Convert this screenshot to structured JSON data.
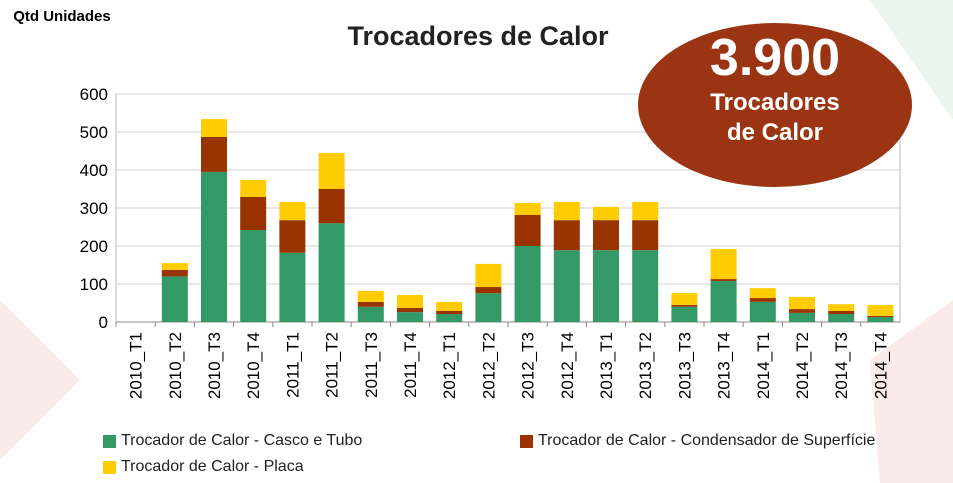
{
  "chart_data": {
    "type": "stacked_bar",
    "title": "Trocadores de Calor",
    "y_label": "Qtd Unidades",
    "categories": [
      "2010_T1",
      "2010_T2",
      "2010_T3",
      "2010_T4",
      "2011_T1",
      "2011_T2",
      "2011_T3",
      "2011_T4",
      "2012_T1",
      "2012_T2",
      "2012_T3",
      "2012_T4",
      "2013_T1",
      "2013_T2",
      "2013_T3",
      "2013_T4",
      "2014_T1",
      "2014_T2",
      "2014_T3",
      "2014_T4"
    ],
    "series": [
      {
        "name": "Trocador de Calor - Casco e Tubo",
        "color": "#339966",
        "values": [
          0,
          120,
          395,
          242,
          182,
          260,
          40,
          26,
          21,
          76,
          200,
          189,
          189,
          189,
          40,
          108,
          53,
          24,
          21,
          13
        ]
      },
      {
        "name": "Trocador de Calor - Condensador de Superfície",
        "color": "#993300",
        "values": [
          0,
          17,
          92,
          87,
          86,
          90,
          13,
          11,
          8,
          16,
          82,
          79,
          79,
          79,
          5,
          5,
          10,
          10,
          8,
          3
        ]
      },
      {
        "name": "Trocador de Calor - Placa",
        "color": "#ffcc00",
        "values": [
          0,
          18,
          47,
          45,
          48,
          95,
          29,
          34,
          24,
          61,
          31,
          48,
          35,
          48,
          31,
          79,
          26,
          32,
          18,
          29
        ]
      }
    ],
    "ylim": [
      0,
      600
    ],
    "yticks": [
      0,
      100,
      200,
      300,
      400,
      500,
      600
    ],
    "grid": true
  },
  "badge": {
    "number": "3.900",
    "label": "Trocadores de Calor"
  }
}
